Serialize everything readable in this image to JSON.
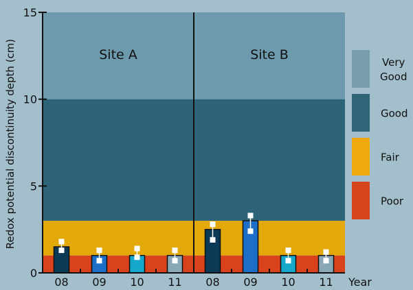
{
  "chart_data": {
    "type": "bar",
    "ylabel": "Redox potential discontinuity depth (cm)",
    "xlabel": "Year",
    "ylim": [
      0,
      15
    ],
    "yticks": [
      "0",
      "5",
      "10",
      "15"
    ],
    "bands": [
      {
        "name": "Poor",
        "from": 0,
        "to": 1,
        "color": "#d9421c"
      },
      {
        "name": "Fair",
        "from": 1,
        "to": 3,
        "color": "#e3a90a"
      },
      {
        "name": "Good",
        "from": 3,
        "to": 10,
        "color": "#2e6478"
      },
      {
        "name": "Very Good",
        "from": 10,
        "to": 15,
        "color": "#6d9aad"
      }
    ],
    "legend": [
      {
        "label_line1": "Very",
        "label_line2": "Good",
        "color": "#789eae"
      },
      {
        "label_line1": "Good",
        "label_line2": "",
        "color": "#2f6577"
      },
      {
        "label_line1": "Fair",
        "label_line2": "",
        "color": "#efa80d"
      },
      {
        "label_line1": "Poor",
        "label_line2": "",
        "color": "#d5461f"
      }
    ],
    "legend_position": "right",
    "panels": [
      {
        "site": "Site A",
        "categories": [
          "08",
          "09",
          "10",
          "11"
        ],
        "values": [
          1.5,
          1.0,
          1.0,
          1.0
        ],
        "markers": [
          [
            1.8,
            1.3
          ],
          [
            1.3,
            0.7
          ],
          [
            1.4,
            0.9
          ],
          [
            1.3,
            0.7
          ]
        ],
        "colors": [
          "#0b3a57",
          "#1c6ec6",
          "#17a7cb",
          "#8aa7b6"
        ]
      },
      {
        "site": "Site B",
        "categories": [
          "08",
          "09",
          "10",
          "11"
        ],
        "values": [
          2.5,
          3.0,
          1.0,
          1.0
        ],
        "markers": [
          [
            2.8,
            1.9
          ],
          [
            3.3,
            2.4
          ],
          [
            1.3,
            0.7
          ],
          [
            1.2,
            0.7
          ]
        ],
        "colors": [
          "#0b3a57",
          "#1c6ec6",
          "#17a7cb",
          "#8aa7b6"
        ]
      }
    ]
  }
}
